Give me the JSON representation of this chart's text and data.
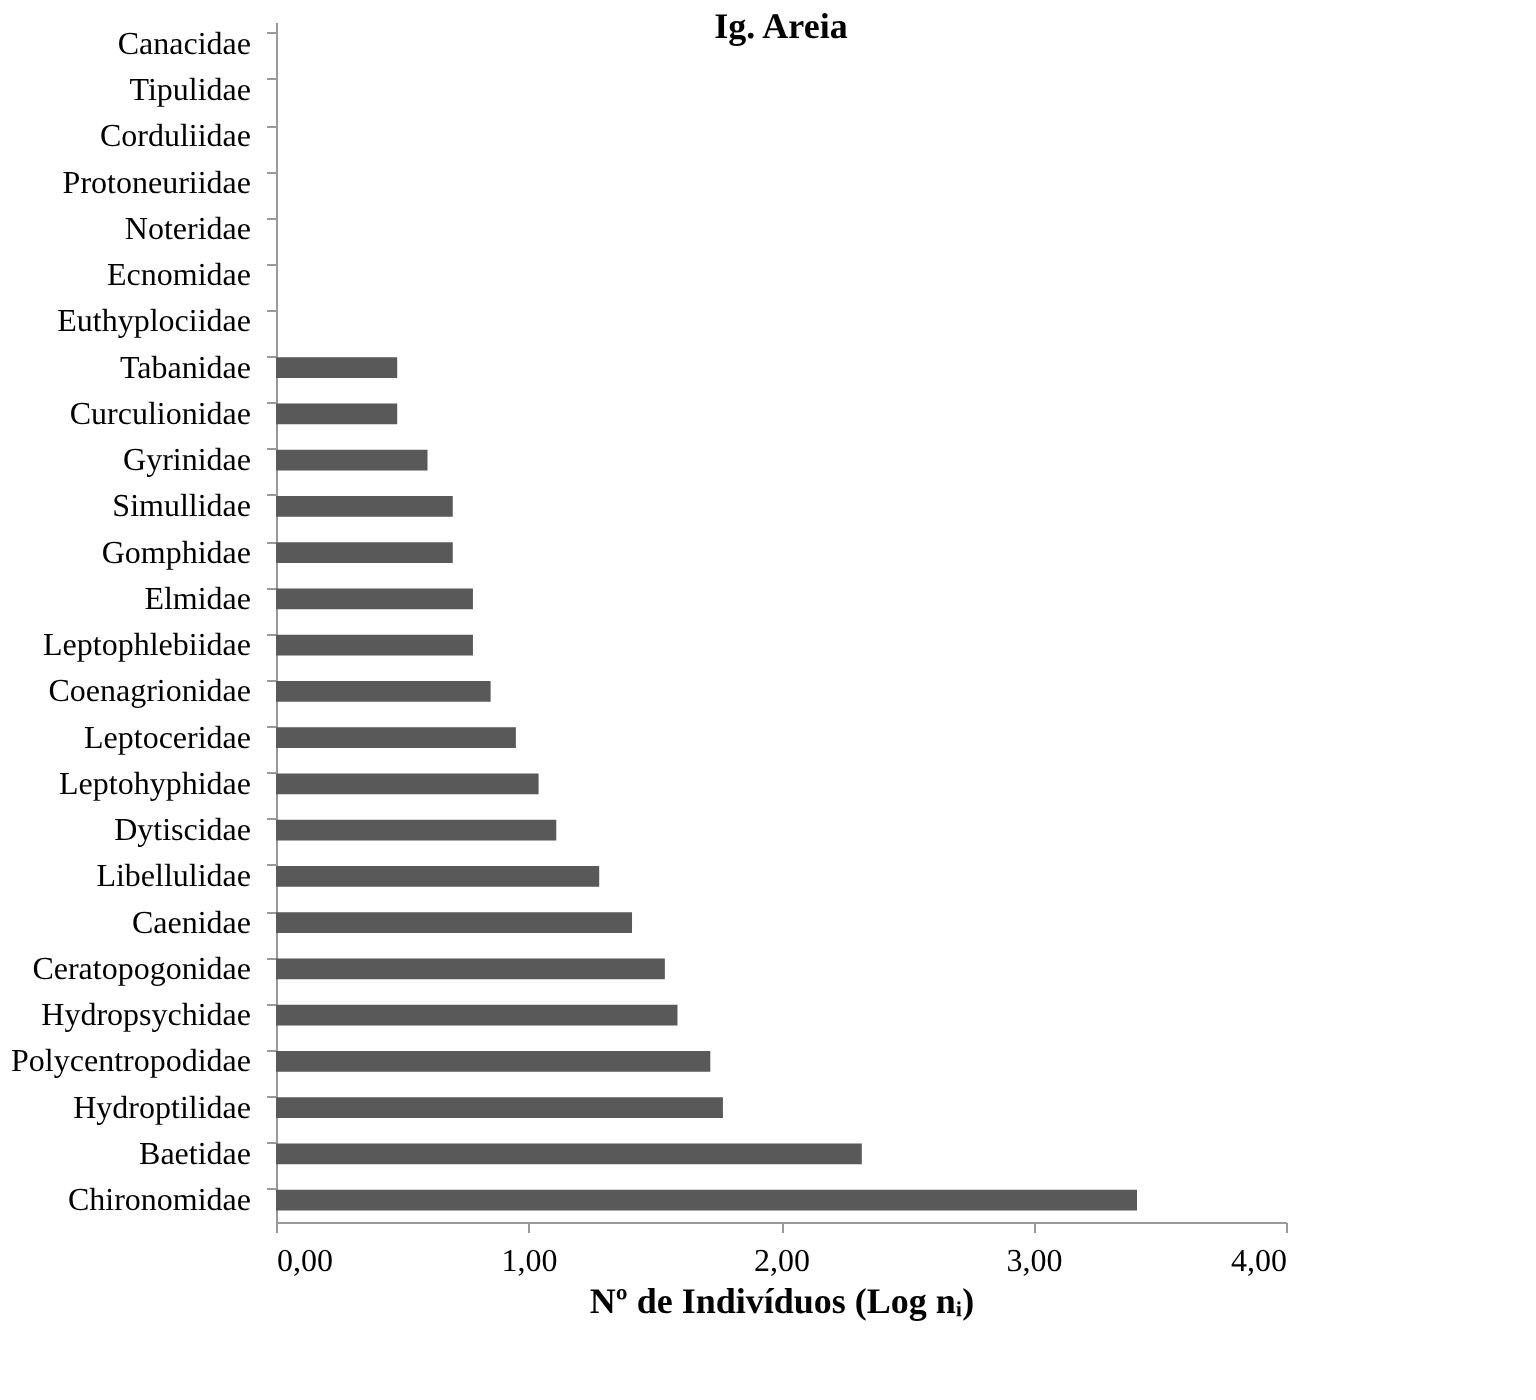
{
  "chart_data": {
    "type": "bar",
    "orientation": "horizontal",
    "title": "Ig. Areia",
    "xlabel": "Nº de Indivíduos (Log nᵢ)",
    "categories": [
      "Canacidae",
      "Tipulidae",
      "Corduliidae",
      "Protoneuriidae",
      "Noteridae",
      "Ecnomidae",
      "Euthyplociidae",
      "Tabanidae",
      "Curculionidae",
      "Gyrinidae",
      "Simullidae",
      "Gomphidae",
      "Elmidae",
      "Leptophlebiidae",
      "Coenagrionidae",
      "Leptoceridae",
      "Leptohyphidae",
      "Dytiscidae",
      "Libellulidae",
      "Caenidae",
      "Ceratopogonidae",
      "Hydropsychidae",
      "Polycentropodidae",
      "Hydroptilidae",
      "Baetidae",
      "Chironomidae"
    ],
    "values": [
      0,
      0,
      0,
      0,
      0,
      0,
      0,
      0.48,
      0.48,
      0.6,
      0.7,
      0.7,
      0.78,
      0.78,
      0.85,
      0.95,
      1.04,
      1.11,
      1.28,
      1.41,
      1.54,
      1.59,
      1.72,
      1.77,
      2.32,
      3.41
    ],
    "color": "#595959",
    "xlim": [
      0,
      4
    ],
    "xticks": [
      {
        "value": 0,
        "label": "0,00"
      },
      {
        "value": 1,
        "label": "1,00"
      },
      {
        "value": 2,
        "label": "2,00"
      },
      {
        "value": 3,
        "label": "3,00"
      },
      {
        "value": 4,
        "label": "4,00"
      }
    ],
    "grid": false
  }
}
